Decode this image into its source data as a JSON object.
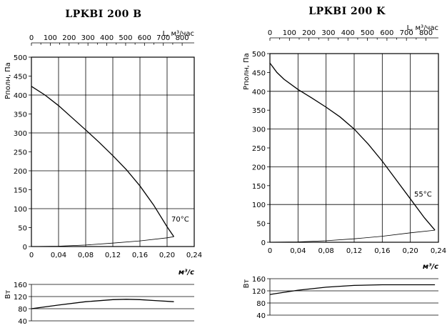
{
  "chart_data": [
    {
      "type": "line",
      "title": "LPKBI 200 B",
      "top_axis_label": "L, м³/час",
      "top_ticks": [
        0,
        100,
        200,
        300,
        400,
        500,
        600,
        700,
        800
      ],
      "ylabel": "Pполн, Па",
      "xlabel": "м³/с",
      "x_ticks": [
        "0",
        "0,04",
        "0,08",
        "0,12",
        "0,16",
        "0,20",
        "0,24"
      ],
      "xlim": [
        0,
        0.24
      ],
      "ylim": [
        0,
        500
      ],
      "y_ticks": [
        0,
        50,
        100,
        150,
        200,
        250,
        300,
        350,
        400,
        450,
        500
      ],
      "grid": true,
      "annotation": "70°C",
      "series": [
        {
          "role": "pressure",
          "x": [
            0,
            0.02,
            0.04,
            0.06,
            0.08,
            0.1,
            0.12,
            0.14,
            0.16,
            0.18,
            0.2,
            0.21
          ],
          "y": [
            423,
            400,
            372,
            340,
            308,
            275,
            240,
            203,
            160,
            110,
            52,
            26
          ]
        },
        {
          "role": "system",
          "x": [
            0,
            0.04,
            0.08,
            0.12,
            0.16,
            0.2,
            0.21
          ],
          "y": [
            0,
            1,
            4,
            9,
            15,
            23,
            26
          ]
        }
      ],
      "power_chart": {
        "ylabel": "Вт",
        "ylim": [
          40,
          160
        ],
        "y_ticks": [
          40,
          80,
          120,
          160
        ],
        "x": [
          0,
          0.04,
          0.08,
          0.12,
          0.14,
          0.16,
          0.18,
          0.21
        ],
        "y": [
          80,
          92,
          103,
          110,
          111,
          110,
          107,
          103
        ]
      }
    },
    {
      "type": "line",
      "title": "LPKBI 200 K",
      "top_axis_label": "L, м³/час",
      "top_ticks": [
        0,
        100,
        200,
        300,
        400,
        500,
        600,
        700,
        800
      ],
      "ylabel": "Pполн, Па",
      "xlabel": "м³/с",
      "x_ticks": [
        "0",
        "0,04",
        "0,08",
        "0,12",
        "0,16",
        "0,20",
        "0,24"
      ],
      "xlim": [
        0,
        0.24
      ],
      "ylim": [
        0,
        500
      ],
      "y_ticks": [
        0,
        50,
        100,
        150,
        200,
        250,
        300,
        350,
        400,
        450,
        500
      ],
      "grid": true,
      "annotation": "55°C",
      "series": [
        {
          "role": "pressure",
          "x": [
            0,
            0.01,
            0.02,
            0.04,
            0.06,
            0.08,
            0.1,
            0.12,
            0.14,
            0.16,
            0.18,
            0.2,
            0.22,
            0.235
          ],
          "y": [
            475,
            450,
            432,
            405,
            382,
            358,
            332,
            300,
            260,
            215,
            165,
            115,
            65,
            32
          ]
        },
        {
          "role": "system",
          "x": [
            0,
            0.04,
            0.08,
            0.12,
            0.16,
            0.2,
            0.235
          ],
          "y": [
            0,
            1,
            4,
            9,
            16,
            25,
            32
          ]
        }
      ],
      "power_chart": {
        "ylabel": "Вт",
        "ylim": [
          40,
          160
        ],
        "y_ticks": [
          40,
          80,
          120,
          160
        ],
        "x": [
          0,
          0.04,
          0.08,
          0.12,
          0.16,
          0.2,
          0.235
        ],
        "y": [
          108,
          122,
          132,
          138,
          140,
          140,
          140
        ]
      }
    }
  ]
}
